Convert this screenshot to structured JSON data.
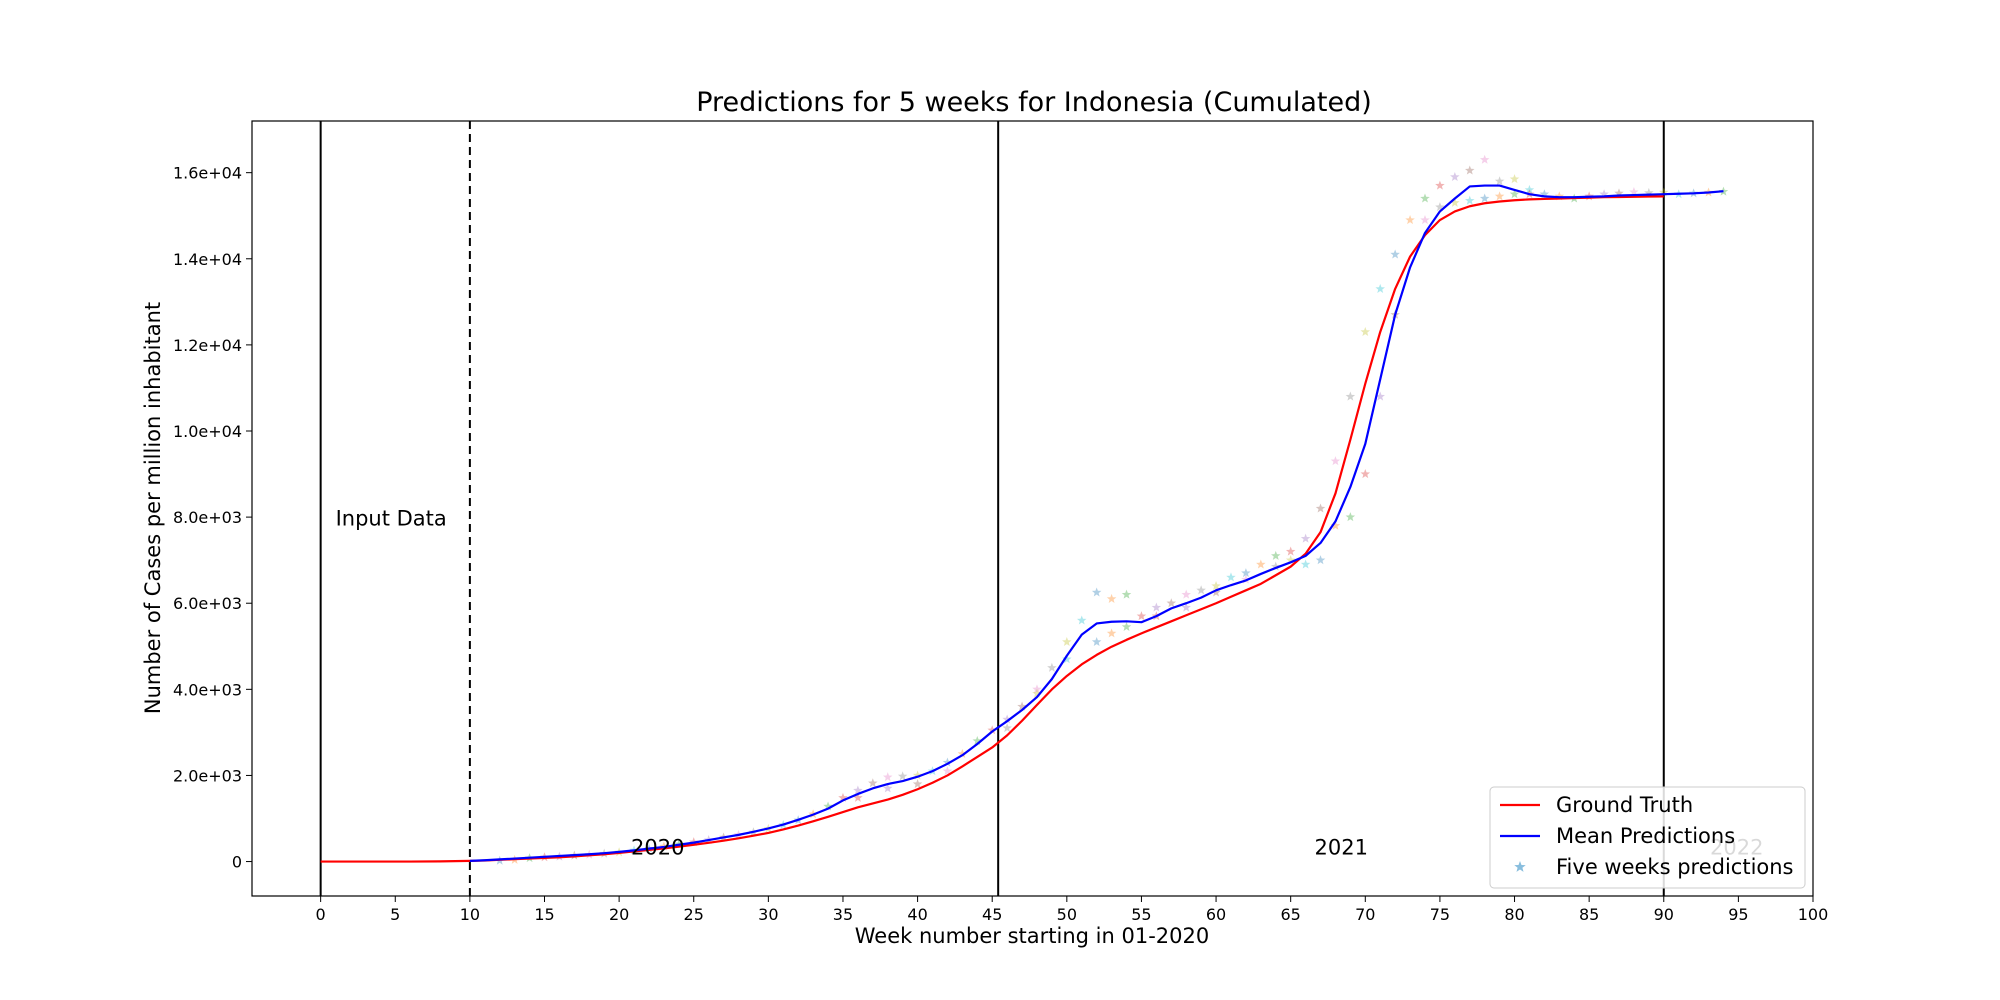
{
  "chart_data": {
    "type": "line",
    "title": "Predictions for 5 weeks for Indonesia (Cumulated)",
    "xlabel": "Week number starting in 01-2020",
    "ylabel": "Number of Cases per million inhabitant",
    "xlim": [
      -4.6,
      100
    ],
    "ylim": [
      -800,
      17200
    ],
    "xticks": [
      0,
      5,
      10,
      15,
      20,
      25,
      30,
      35,
      40,
      45,
      50,
      55,
      60,
      65,
      70,
      75,
      80,
      85,
      90,
      95,
      100
    ],
    "yticks": [
      {
        "value": 0,
        "label": "0"
      },
      {
        "value": 2000,
        "label": "2.0e+03"
      },
      {
        "value": 4000,
        "label": "4.0e+03"
      },
      {
        "value": 6000,
        "label": "6.0e+03"
      },
      {
        "value": 8000,
        "label": "8.0e+03"
      },
      {
        "value": 10000,
        "label": "1.0e+04"
      },
      {
        "value": 12000,
        "label": "1.2e+04"
      },
      {
        "value": 14000,
        "label": "1.4e+04"
      },
      {
        "value": 16000,
        "label": "1.6e+04"
      }
    ],
    "vertical_lines": [
      {
        "x": 0,
        "style": "solid"
      },
      {
        "x": 10,
        "style": "dashed"
      },
      {
        "x": 45.4,
        "style": "solid"
      },
      {
        "x": 90,
        "style": "solid"
      }
    ],
    "annotations": [
      {
        "text": "Input Data",
        "x": 1,
        "y": 7800,
        "color": "#000000"
      },
      {
        "text": "2020",
        "x": 20.8,
        "y": 160,
        "color": "#000000"
      },
      {
        "text": "2021",
        "x": 66.6,
        "y": 160,
        "color": "#000000"
      },
      {
        "text": "2022",
        "x": 93.1,
        "y": 160,
        "color": "#c8c8c8"
      }
    ],
    "legend": {
      "position": "lower-right",
      "entries": [
        {
          "label": "Ground Truth",
          "kind": "line",
          "color": "#ff0000"
        },
        {
          "label": "Mean Predictions",
          "kind": "line",
          "color": "#0000ff"
        },
        {
          "label": "Five weeks predictions",
          "kind": "star",
          "color": "#6baed6"
        }
      ]
    },
    "series": [
      {
        "name": "Ground Truth",
        "color": "#ff0000",
        "x": [
          0,
          2,
          4,
          6,
          8,
          10,
          11,
          12,
          13,
          14,
          15,
          16,
          17,
          18,
          19,
          20,
          21,
          22,
          23,
          24,
          25,
          26,
          27,
          28,
          29,
          30,
          31,
          32,
          33,
          34,
          35,
          36,
          37,
          38,
          39,
          40,
          41,
          42,
          43,
          44,
          45,
          46,
          47,
          48,
          49,
          50,
          51,
          52,
          53,
          54,
          55,
          56,
          57,
          58,
          59,
          60,
          61,
          62,
          63,
          64,
          65,
          66,
          67,
          68,
          69,
          70,
          71,
          72,
          73,
          74,
          75,
          76,
          77,
          78,
          79,
          80,
          81,
          82,
          83,
          84,
          85,
          86,
          87,
          88,
          89,
          90
        ],
        "y": [
          0,
          0,
          0,
          0,
          5,
          15,
          25,
          40,
          55,
          70,
          85,
          100,
          120,
          145,
          170,
          200,
          235,
          270,
          305,
          345,
          390,
          435,
          485,
          540,
          600,
          665,
          745,
          835,
          935,
          1040,
          1150,
          1260,
          1350,
          1440,
          1550,
          1680,
          1830,
          2000,
          2210,
          2430,
          2650,
          2930,
          3270,
          3640,
          4000,
          4310,
          4580,
          4800,
          4990,
          5150,
          5300,
          5440,
          5580,
          5720,
          5860,
          6000,
          6150,
          6300,
          6450,
          6650,
          6850,
          7150,
          7650,
          8550,
          9800,
          11100,
          12300,
          13300,
          14050,
          14550,
          14900,
          15100,
          15220,
          15290,
          15330,
          15360,
          15380,
          15390,
          15400,
          15410,
          15420,
          15430,
          15435,
          15440,
          15445,
          15450
        ]
      },
      {
        "name": "Mean Predictions",
        "color": "#0000ff",
        "x": [
          10,
          11,
          12,
          13,
          14,
          15,
          16,
          17,
          18,
          19,
          20,
          21,
          22,
          23,
          24,
          25,
          26,
          27,
          28,
          29,
          30,
          31,
          32,
          33,
          34,
          35,
          36,
          37,
          38,
          39,
          40,
          41,
          42,
          43,
          44,
          45,
          46,
          47,
          48,
          49,
          50,
          51,
          52,
          53,
          54,
          55,
          56,
          57,
          58,
          59,
          60,
          61,
          62,
          63,
          64,
          65,
          66,
          67,
          68,
          69,
          70,
          71,
          72,
          73,
          74,
          75,
          76,
          77,
          78,
          79,
          80,
          81,
          82,
          83,
          84,
          85,
          86,
          87,
          88,
          89,
          90,
          91,
          92,
          93,
          94
        ],
        "y": [
          15,
          30,
          50,
          70,
          90,
          110,
          130,
          150,
          170,
          195,
          225,
          260,
          300,
          340,
          390,
          440,
          500,
          560,
          620,
          690,
          770,
          860,
          970,
          1090,
          1230,
          1420,
          1570,
          1700,
          1800,
          1870,
          1970,
          2100,
          2270,
          2470,
          2730,
          3020,
          3260,
          3520,
          3820,
          4240,
          4780,
          5270,
          5530,
          5570,
          5580,
          5560,
          5700,
          5880,
          6000,
          6130,
          6300,
          6420,
          6530,
          6680,
          6820,
          6950,
          7100,
          7400,
          7900,
          8700,
          9700,
          11200,
          12700,
          13800,
          14600,
          15100,
          15400,
          15680,
          15700,
          15700,
          15600,
          15500,
          15450,
          15430,
          15430,
          15440,
          15450,
          15470,
          15480,
          15490,
          15500,
          15510,
          15520,
          15540,
          15570
        ]
      }
    ],
    "scatter": {
      "name": "Five weeks predictions",
      "marker": "star",
      "colors": [
        "#1f77b4",
        "#ff7f0e",
        "#2ca02c",
        "#d62728",
        "#9467bd",
        "#8c564b",
        "#e377c2",
        "#7f7f7f",
        "#bcbd22",
        "#17becf"
      ],
      "points": [
        [
          12,
          20
        ],
        [
          13,
          40
        ],
        [
          14,
          80
        ],
        [
          15,
          100
        ],
        [
          16,
          115
        ],
        [
          17,
          140
        ],
        [
          18,
          160
        ],
        [
          19,
          185
        ],
        [
          20,
          215
        ],
        [
          21,
          260
        ],
        [
          22,
          300
        ],
        [
          23,
          350
        ],
        [
          24,
          400
        ],
        [
          25,
          450
        ],
        [
          26,
          500
        ],
        [
          27,
          560
        ],
        [
          28,
          620
        ],
        [
          29,
          680
        ],
        [
          30,
          760
        ],
        [
          31,
          850
        ],
        [
          32,
          960
        ],
        [
          33,
          1100
        ],
        [
          34,
          1280
        ],
        [
          35,
          1480
        ],
        [
          36,
          1650
        ],
        [
          37,
          1820
        ],
        [
          38,
          1960
        ],
        [
          39,
          1980
        ],
        [
          40,
          2000
        ],
        [
          41,
          2100
        ],
        [
          42,
          2300
        ],
        [
          43,
          2500
        ],
        [
          44,
          2800
        ],
        [
          45,
          3050
        ],
        [
          46,
          3300
        ],
        [
          47,
          3600
        ],
        [
          48,
          4000
        ],
        [
          49,
          4500
        ],
        [
          50,
          5100
        ],
        [
          51,
          5600
        ],
        [
          52,
          6250
        ],
        [
          53,
          6100
        ],
        [
          54,
          6200
        ],
        [
          55,
          5700
        ],
        [
          56,
          5900
        ],
        [
          57,
          6000
        ],
        [
          58,
          6200
        ],
        [
          59,
          6300
        ],
        [
          60,
          6400
        ],
        [
          61,
          6600
        ],
        [
          62,
          6700
        ],
        [
          63,
          6900
        ],
        [
          64,
          7100
        ],
        [
          65,
          7200
        ],
        [
          66,
          7500
        ],
        [
          67,
          8200
        ],
        [
          68,
          9300
        ],
        [
          69,
          10800
        ],
        [
          70,
          12300
        ],
        [
          71,
          13300
        ],
        [
          72,
          14100
        ],
        [
          73,
          14900
        ],
        [
          74,
          15400
        ],
        [
          75,
          15700
        ],
        [
          76,
          15900
        ],
        [
          77,
          16050
        ],
        [
          78,
          16300
        ],
        [
          79,
          15800
        ],
        [
          80,
          15850
        ],
        [
          81,
          15600
        ],
        [
          82,
          15500
        ],
        [
          83,
          15450
        ],
        [
          84,
          15400
        ],
        [
          85,
          15450
        ],
        [
          86,
          15500
        ],
        [
          87,
          15520
        ],
        [
          88,
          15550
        ],
        [
          89,
          15530
        ],
        [
          90,
          15540
        ],
        [
          91,
          15500
        ],
        [
          92,
          15520
        ],
        [
          93,
          15540
        ],
        [
          94,
          15560
        ],
        [
          36,
          1480
        ],
        [
          38,
          1700
        ],
        [
          40,
          1800
        ],
        [
          42,
          2100
        ],
        [
          46,
          3100
        ],
        [
          48,
          3900
        ],
        [
          50,
          4700
        ],
        [
          52,
          5100
        ],
        [
          53,
          5300
        ],
        [
          54,
          5450
        ],
        [
          56,
          5700
        ],
        [
          58,
          5900
        ],
        [
          60,
          6250
        ],
        [
          62,
          6550
        ],
        [
          64,
          6850
        ],
        [
          65,
          7000
        ],
        [
          66,
          6900
        ],
        [
          67,
          7000
        ],
        [
          68,
          7800
        ],
        [
          69,
          8000
        ],
        [
          70,
          9000
        ],
        [
          71,
          10800
        ],
        [
          72,
          12700
        ],
        [
          74,
          14900
        ],
        [
          75,
          15200
        ],
        [
          76,
          15300
        ],
        [
          77,
          15350
        ],
        [
          78,
          15400
        ],
        [
          79,
          15450
        ],
        [
          80,
          15500
        ],
        [
          81,
          15500
        ]
      ]
    }
  }
}
